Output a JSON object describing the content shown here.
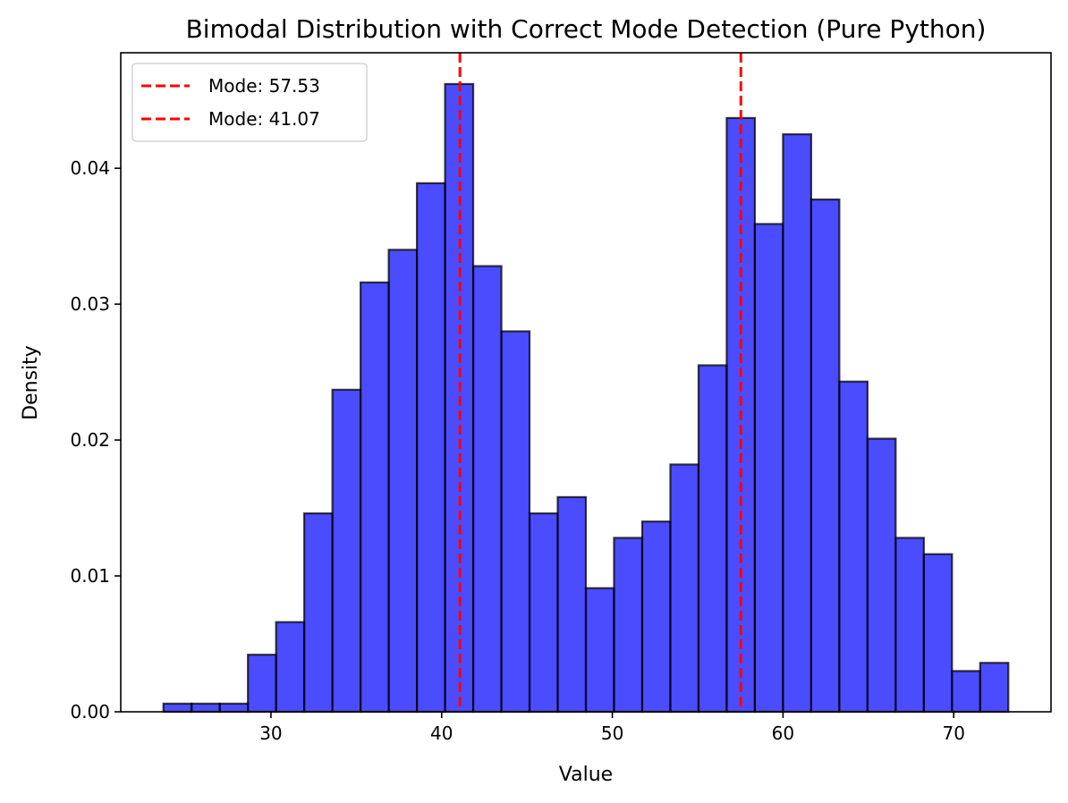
{
  "chart_data": {
    "type": "bar",
    "subtype": "histogram",
    "title": "Bimodal Distribution with Correct Mode Detection (Pure Python)",
    "xlabel": "Value",
    "ylabel": "Density",
    "xlim": [
      21.2,
      75.7
    ],
    "ylim": [
      0,
      0.0485
    ],
    "xticks": [
      30,
      40,
      50,
      60,
      70
    ],
    "xtick_labels": [
      "30",
      "40",
      "50",
      "60",
      "70"
    ],
    "yticks": [
      0,
      0.01,
      0.02,
      0.03,
      0.04
    ],
    "ytick_labels": [
      "0.00",
      "0.01",
      "0.02",
      "0.03",
      "0.04"
    ],
    "grid": false,
    "bins": {
      "edges": [
        23.7,
        25.35,
        27.0,
        28.65,
        30.3,
        31.95,
        33.6,
        35.25,
        36.9,
        38.55,
        40.2,
        41.85,
        43.5,
        45.15,
        46.8,
        48.45,
        50.1,
        51.75,
        53.4,
        55.05,
        56.7,
        58.35,
        60.0,
        61.65,
        63.3,
        64.95,
        66.6,
        68.25,
        69.9,
        71.55,
        73.2
      ],
      "values": [
        0.0006,
        0.0006,
        0.0006,
        0.0042,
        0.0066,
        0.0146,
        0.0237,
        0.0316,
        0.034,
        0.0389,
        0.0462,
        0.0328,
        0.028,
        0.0146,
        0.0158,
        0.0091,
        0.0128,
        0.014,
        0.0182,
        0.0255,
        0.0437,
        0.0359,
        0.0425,
        0.0377,
        0.0243,
        0.0201,
        0.0128,
        0.0116,
        0.003,
        0.0036
      ]
    },
    "bar_color": "#0000ff",
    "bar_alpha": 0.7,
    "bar_edge_color": "#000000",
    "mode_lines": [
      {
        "label": "Mode: 57.53",
        "x": 57.53,
        "color": "#ff0000",
        "style": "dashed"
      },
      {
        "label": "Mode: 41.07",
        "x": 41.07,
        "color": "#ff0000",
        "style": "dashed"
      }
    ],
    "legend_position": "top-left"
  }
}
